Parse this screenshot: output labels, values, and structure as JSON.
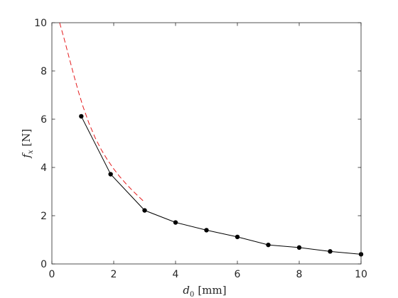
{
  "chart_data": {
    "type": "line",
    "title": "",
    "xlabel": {
      "var": "d",
      "sub": "0",
      "unit": "[mm]"
    },
    "ylabel": {
      "var": "f",
      "sub": "x",
      "unit": "[N]"
    },
    "xlim": [
      0,
      10
    ],
    "ylim": [
      0,
      10
    ],
    "xticks": [
      0,
      2,
      4,
      6,
      8,
      10
    ],
    "yticks": [
      0,
      2,
      4,
      6,
      8,
      10
    ],
    "grid": false,
    "series": [
      {
        "style": "solid-markers",
        "color": "#000000",
        "x": [
          0.95,
          1.9,
          3.0,
          4.0,
          5.0,
          6.0,
          7.0,
          8.0,
          9.0,
          10.0
        ],
        "y": [
          6.12,
          3.72,
          2.22,
          1.72,
          1.4,
          1.12,
          0.79,
          0.68,
          0.52,
          0.4
        ]
      },
      {
        "style": "dashed",
        "color": "#e41a1c",
        "x": [
          0.25,
          0.4,
          0.55,
          0.7,
          0.85,
          1.0,
          1.2,
          1.4,
          1.6,
          1.8,
          2.0,
          2.2,
          2.4,
          2.6,
          2.8,
          3.0
        ],
        "y": [
          10.0,
          9.32,
          8.59,
          7.87,
          7.18,
          6.55,
          5.83,
          5.23,
          4.73,
          4.31,
          3.94,
          3.61,
          3.32,
          3.05,
          2.8,
          2.56
        ]
      }
    ]
  }
}
